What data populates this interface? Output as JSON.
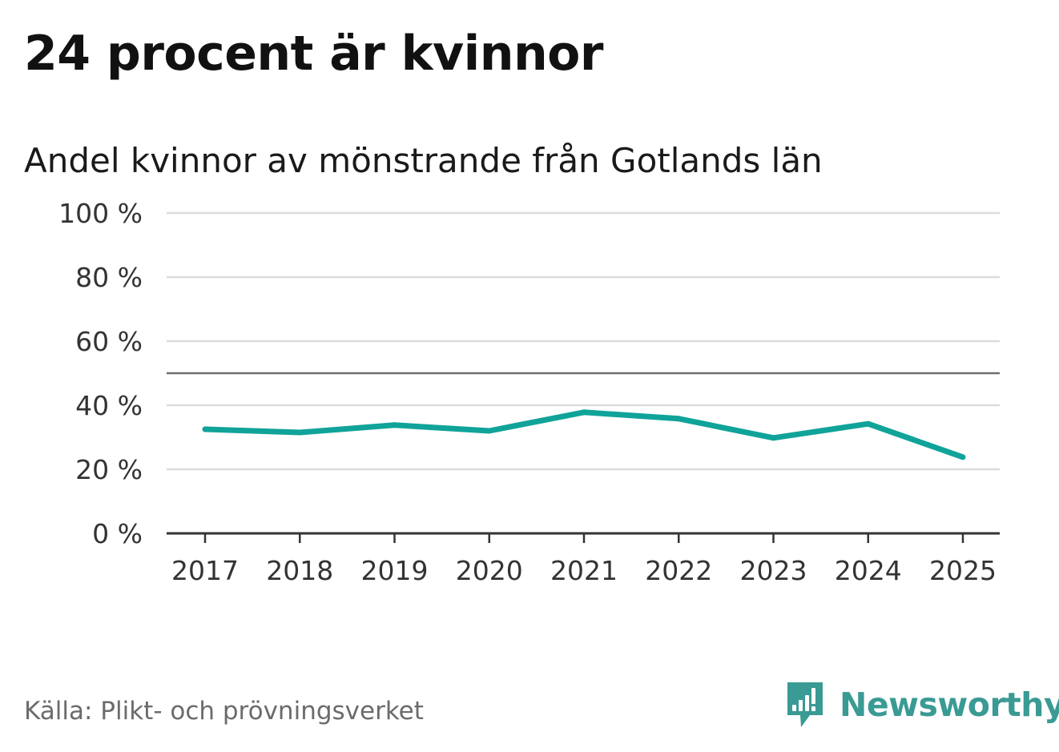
{
  "title": "24 procent är kvinnor",
  "subtitle": "Andel kvinnor av mönstrande från Gotlands län",
  "source": "Källa: Plikt- och prövningsverket",
  "brand": {
    "name": "Newsworthy",
    "logo_icon": "newsworthy-logo-icon",
    "color": "#3a9a94"
  },
  "chart_data": {
    "type": "line",
    "x": [
      "2017",
      "2018",
      "2019",
      "2020",
      "2021",
      "2022",
      "2023",
      "2024",
      "2025"
    ],
    "series": [
      {
        "values": [
          32.5,
          31.5,
          33.8,
          32.0,
          37.8,
          35.8,
          29.8,
          34.2,
          23.8
        ],
        "color": "#10a399"
      }
    ],
    "ylim": [
      0,
      100
    ],
    "yticks": [
      0,
      20,
      40,
      60,
      80,
      100
    ],
    "ytick_labels": [
      "0 %",
      "20 %",
      "40 %",
      "60 %",
      "80 %",
      "100 %"
    ],
    "reference_line": 50,
    "grid": true,
    "xlabel": "",
    "ylabel": ""
  }
}
